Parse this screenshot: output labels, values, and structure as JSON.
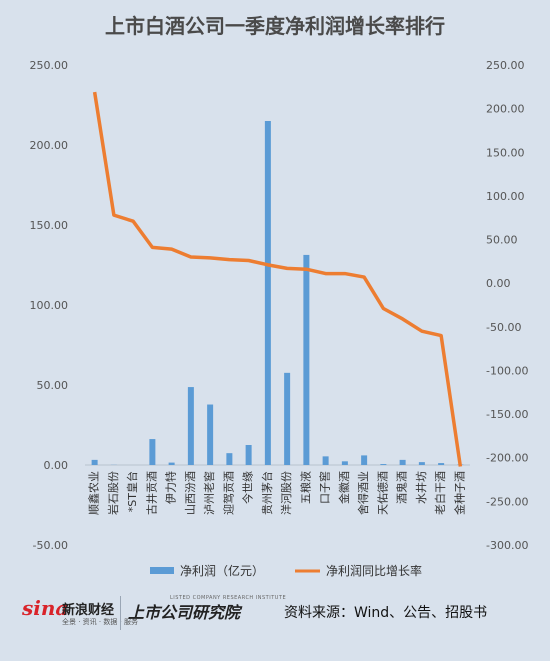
{
  "chart_data": {
    "type": "bar+line",
    "title": "上市白酒公司一季度净利润增长率排行",
    "categories": [
      "顺鑫农业",
      "岩石股份",
      "*ST皇台",
      "古井贡酒",
      "伊力特",
      "山西汾酒",
      "泸州老窖",
      "迎驾贡酒",
      "今世缘",
      "贵州茅台",
      "洋河股份",
      "五粮液",
      "口子窖",
      "金徽酒",
      "舍得酒业",
      "天佑德酒",
      "酒鬼酒",
      "水井坊",
      "老白干酒",
      "金种子酒"
    ],
    "series": [
      {
        "name": "净利润（亿元）",
        "type": "bar",
        "axis": "left",
        "color": "#5b9bd5",
        "values": [
          3.2,
          0.1,
          0.0,
          16.2,
          1.5,
          48.7,
          37.8,
          7.4,
          12.5,
          215.0,
          57.6,
          131.3,
          5.4,
          2.3,
          6.0,
          0.6,
          3.2,
          1.8,
          1.2,
          0.3
        ]
      },
      {
        "name": "净利润同比增长率",
        "type": "line",
        "axis": "right",
        "color": "#ed7d31",
        "values": [
          219,
          78,
          71,
          41,
          39,
          30,
          29,
          27,
          26,
          21,
          17,
          16,
          11,
          11,
          7,
          -29,
          -41,
          -55,
          -60,
          -210
        ]
      }
    ],
    "y_left": {
      "ticks": [
        "-50.00",
        "0.00",
        "50.00",
        "100.00",
        "150.00",
        "200.00",
        "250.00"
      ],
      "min": -50,
      "max": 250
    },
    "y_right": {
      "ticks": [
        "-300.00",
        "-250.00",
        "-200.00",
        "-150.00",
        "-100.00",
        "-50.00",
        "0.00",
        "50.00",
        "100.00",
        "150.00",
        "200.00",
        "250.00"
      ],
      "min": -300,
      "max": 250
    },
    "grid": false,
    "legend": "bottom"
  },
  "footer": {
    "sina_logo": "sina",
    "sina_name": "新浪财经",
    "sina_sub": "全景 · 资讯 · 数据 · 服务",
    "institute_name": "上市公司研究院",
    "institute_eng": "LISTED COMPANY RESEARCH INSTITUTE",
    "source": "资料来源：Wind、公告、招股书"
  }
}
